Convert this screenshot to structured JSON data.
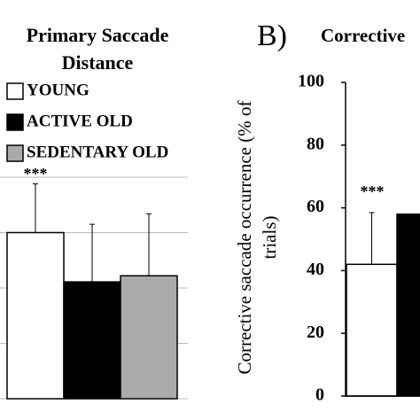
{
  "chart_data": [
    {
      "type": "bar",
      "title": "Primary Saccade Distance",
      "series": [
        {
          "name": "YOUNG",
          "color": "#ffffff",
          "values": [
            3.0
          ],
          "errors": [
            0.88
          ]
        },
        {
          "name": "ACTIVE OLD",
          "color": "#000000",
          "values": [
            2.11
          ],
          "errors": [
            1.04
          ]
        },
        {
          "name": "SEDENTARY OLD",
          "color": "#aaaaaa",
          "values": [
            2.22
          ],
          "errors": [
            1.12
          ]
        }
      ],
      "ylim": [
        0,
        4
      ],
      "grid_lines": [
        0,
        1,
        2,
        3,
        4
      ],
      "grid": true,
      "annotations": [
        "***"
      ]
    },
    {
      "type": "bar",
      "panel_label": "B)",
      "title": "Corrective",
      "ylabel": "Corrective saccade occurrence (% of trials)",
      "series": [
        {
          "name": "YOUNG",
          "color": "#ffffff",
          "values": [
            42
          ],
          "errors": [
            16.5
          ]
        },
        {
          "name": "ACTIVE OLD",
          "color": "#000000",
          "values": [
            58
          ]
        }
      ],
      "ylim": [
        0,
        100
      ],
      "yticks": [
        0,
        20,
        40,
        60,
        80,
        100
      ],
      "grid": false,
      "annotations": [
        "***"
      ]
    }
  ]
}
